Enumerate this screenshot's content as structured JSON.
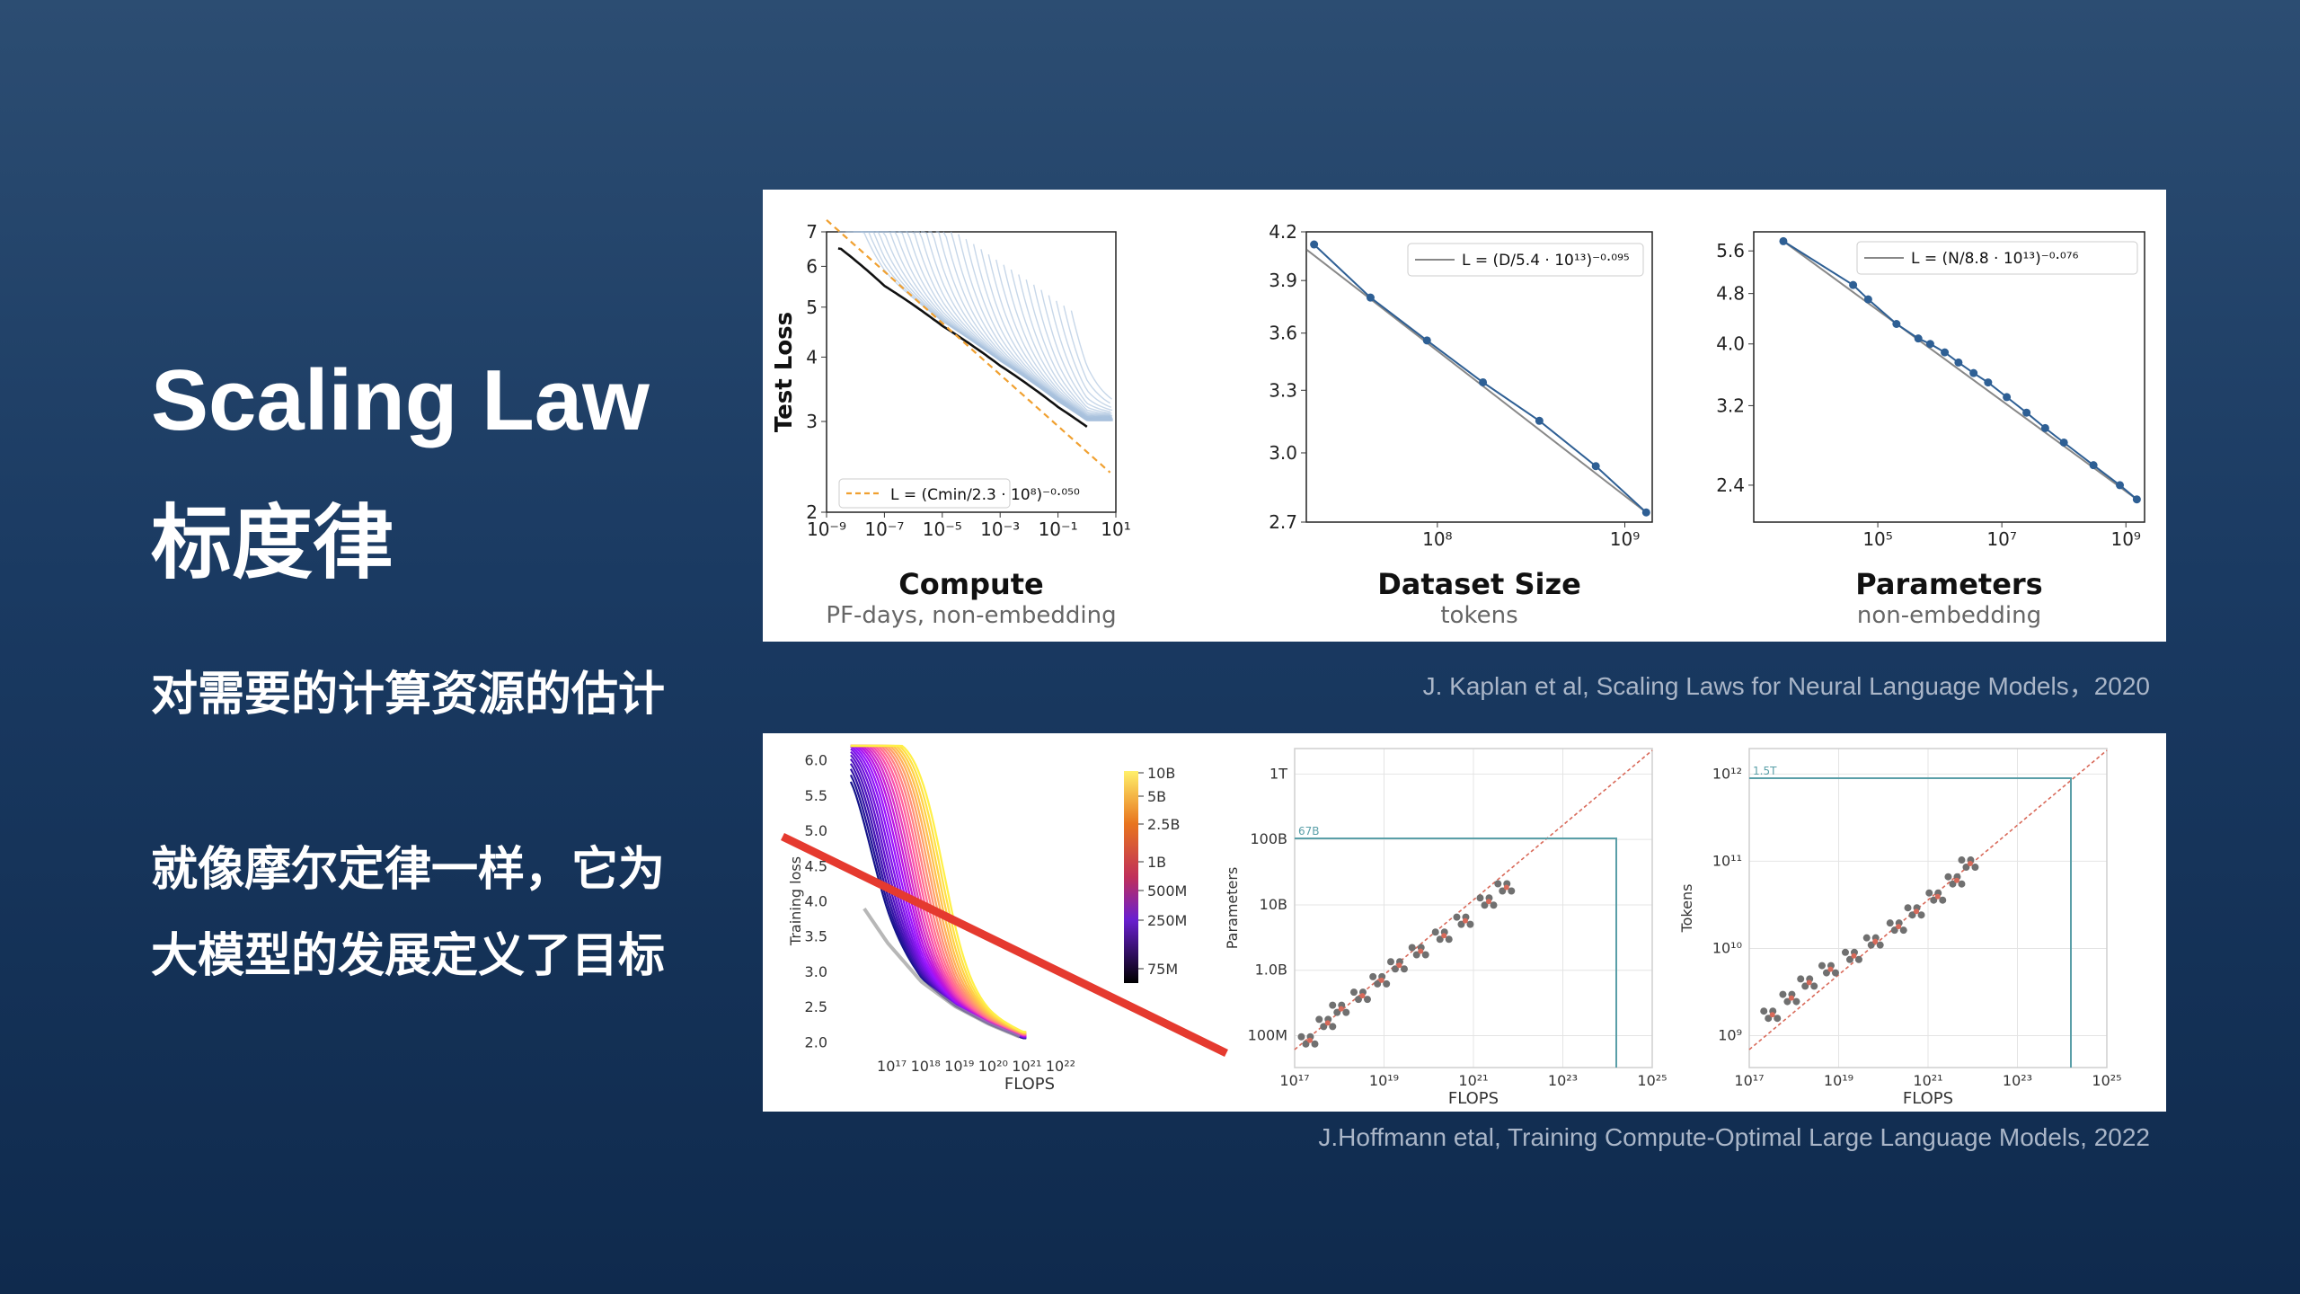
{
  "slide": {
    "title": "Scaling Law",
    "subtitle": "标度律",
    "line1": "对需要的计算资源的估计",
    "line2": "就像摩尔定律一样，它为",
    "line3": "大模型的发展定义了目标"
  },
  "citations": {
    "kaplan": "J. Kaplan et al, Scaling Laws for Neural Language Models，2020",
    "hoffmann": "J.Hoffmann etal, Training Compute-Optimal Large Language Models, 2022"
  },
  "colors": {
    "accent_red": "#e53a2f",
    "fit_blue": "#2e5f94",
    "curve_light_blue": "#a9c2dd",
    "frontier_orange": "#f0a030",
    "scatter_gray": "#707070",
    "fit_red_dashed": "#d96a5a",
    "guide_teal": "#5a9fa8"
  },
  "chart_data": [
    {
      "type": "line",
      "panel": "kaplan",
      "xlabel": "Compute",
      "xlabel_sub": "PF-days, non-embedding",
      "ylabel": "Test Loss",
      "x_scale": "log",
      "y_scale": "log",
      "xlim": [
        1e-09,
        10
      ],
      "ylim": [
        2,
        7
      ],
      "x_ticks": [
        "10⁻⁹",
        "10⁻⁷",
        "10⁻⁵",
        "10⁻³",
        "10⁻¹",
        "10¹"
      ],
      "y_ticks": [
        "2",
        "3",
        "4",
        "5",
        "6",
        "7"
      ],
      "legend": "L = (Cmin/2.3 · 10⁸)⁻⁰·⁰⁵⁰",
      "legend_position": "lower-left",
      "frontier": {
        "x": [
          3e-09,
          1e-07,
          1e-05,
          0.001,
          0.1,
          1
        ],
        "y": [
          6.5,
          5.5,
          4.6,
          3.85,
          3.2,
          2.93
        ]
      },
      "fit": {
        "c_min": 230000000.0,
        "exponent": -0.05
      }
    },
    {
      "type": "scatter",
      "panel": "kaplan",
      "xlabel": "Dataset Size",
      "xlabel_sub": "tokens",
      "x_scale": "log",
      "y_scale": "log",
      "xlim": [
        20000000.0,
        1400000000.0
      ],
      "ylim": [
        2.7,
        4.2
      ],
      "x_ticks": [
        "10⁸",
        "10⁹"
      ],
      "y_ticks": [
        "2.7",
        "3.0",
        "3.3",
        "3.6",
        "3.9",
        "4.2"
      ],
      "legend": "L = (D/5.4 · 10¹³)⁻⁰·⁰⁹⁵",
      "legend_position": "top-right",
      "points": {
        "x": [
          22000000.0,
          44000000.0,
          88000000.0,
          175000000.0,
          350000000.0,
          700000000.0,
          1300000000.0
        ],
        "y": [
          4.12,
          3.8,
          3.56,
          3.34,
          3.15,
          2.94,
          2.74
        ]
      }
    },
    {
      "type": "scatter",
      "panel": "kaplan",
      "xlabel": "Parameters",
      "xlabel_sub": "non-embedding",
      "x_scale": "log",
      "y_scale": "log",
      "xlim": [
        1000.0,
        2000000000.0
      ],
      "ylim": [
        2.1,
        6.0
      ],
      "x_ticks": [
        "10⁵",
        "10⁷",
        "10⁹"
      ],
      "y_ticks": [
        "2.4",
        "3.2",
        "4.0",
        "4.8",
        "5.6"
      ],
      "legend": "L = (N/8.8 · 10¹³)⁻⁰·⁰⁷⁶",
      "legend_position": "top-right",
      "points": {
        "x": [
          3000,
          40000,
          70000,
          200000,
          450000,
          700000,
          1200000,
          2000000,
          3500000,
          6000000,
          12000000,
          25000000,
          50000000,
          100000000,
          300000000,
          800000000,
          1500000000
        ],
        "y": [
          5.8,
          4.95,
          4.7,
          4.3,
          4.08,
          4.0,
          3.88,
          3.74,
          3.6,
          3.48,
          3.3,
          3.12,
          2.95,
          2.8,
          2.58,
          2.4,
          2.28
        ]
      }
    },
    {
      "type": "line",
      "panel": "hoffmann",
      "xlabel": "FLOPS",
      "ylabel": "Training loss",
      "x_scale": "log",
      "xlim": [
        3e+16,
        1e+23
      ],
      "ylim": [
        1.8,
        6.2
      ],
      "x_ticks": [
        "10¹⁷",
        "10¹⁸",
        "10¹⁹",
        "10²⁰",
        "10²¹",
        "10²²"
      ],
      "y_ticks": [
        "2.0",
        "2.5",
        "3.0",
        "3.5",
        "4.0",
        "4.5",
        "5.0",
        "5.5",
        "6.0"
      ],
      "colorbar_ticks": [
        "10B",
        "5B",
        "2.5B",
        "1B",
        "500M",
        "250M",
        "75M"
      ],
      "colorbar_label": "",
      "envelope": {
        "x": [
          1e+17,
          1e+18,
          1e+19,
          1e+20,
          1e+21,
          1e+22
        ],
        "y": [
          4.1,
          3.4,
          2.85,
          2.5,
          2.25,
          2.05
        ]
      }
    },
    {
      "type": "scatter",
      "panel": "hoffmann",
      "xlabel": "FLOPS",
      "ylabel": "Parameters",
      "x_scale": "log",
      "y_scale": "log",
      "xlim": [
        1e+17,
        1e+25
      ],
      "ylim": [
        30000000.0,
        3000000000000.0
      ],
      "x_ticks": [
        "10¹⁷",
        "10¹⁹",
        "10²¹",
        "10²³",
        "10²⁵"
      ],
      "y_ticks": [
        "100M",
        "1.0B",
        "10B",
        "100B",
        "1T"
      ],
      "annotation": "67B",
      "points": {
        "x": [
          2e+17,
          5e+17,
          1e+18,
          3e+18,
          8e+18,
          2e+19,
          6e+19,
          2e+20,
          6e+20,
          2e+21,
          5e+21
        ],
        "y": [
          80000000.0,
          150000000.0,
          250000000.0,
          400000000.0,
          700000000.0,
          1200000000.0,
          2000000000.0,
          3500000000.0,
          6000000000.0,
          12000000000.0,
          20000000000.0
        ]
      }
    },
    {
      "type": "scatter",
      "panel": "hoffmann",
      "xlabel": "FLOPS",
      "ylabel": "Tokens",
      "x_scale": "log",
      "y_scale": "log",
      "xlim": [
        1e+17,
        1e+25
      ],
      "ylim": [
        300000000.0,
        5000000000000.0
      ],
      "x_ticks": [
        "10¹⁷",
        "10¹⁹",
        "10²¹",
        "10²³",
        "10²⁵"
      ],
      "y_ticks": [
        "10⁹",
        "10¹⁰",
        "10¹¹",
        "10¹²"
      ],
      "annotation": "1.5T",
      "points": {
        "x": [
          3e+17,
          8e+17,
          2e+18,
          6e+18,
          2e+19,
          6e+19,
          2e+20,
          5e+20,
          1.5e+21,
          4e+21,
          8e+21
        ],
        "y": [
          1500000000.0,
          2500000000.0,
          4000000000.0,
          6000000000.0,
          9000000000.0,
          14000000000.0,
          22000000000.0,
          35000000000.0,
          55000000000.0,
          90000000000.0,
          150000000000.0
        ]
      }
    }
  ]
}
